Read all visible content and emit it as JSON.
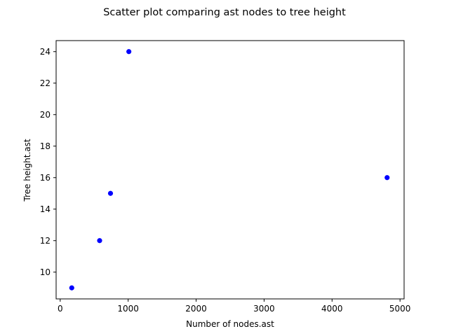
{
  "chart_data": {
    "type": "scatter",
    "title": "Scatter plot comparing ast nodes to tree height",
    "xlabel": "Number of nodes.ast",
    "ylabel": "Tree height.ast",
    "xlim": [
      -60,
      5060
    ],
    "ylim": [
      8.3,
      24.7
    ],
    "xticks": [
      0,
      1000,
      2000,
      3000,
      4000,
      5000
    ],
    "xtick_labels": [
      "0",
      "1000",
      "2000",
      "3000",
      "4000",
      "5000"
    ],
    "yticks": [
      10,
      12,
      14,
      16,
      18,
      20,
      22,
      24
    ],
    "ytick_labels": [
      "10",
      "12",
      "14",
      "16",
      "18",
      "20",
      "22",
      "24"
    ],
    "grid": false,
    "marker_color": "#0000ff",
    "points": [
      {
        "x": 170,
        "y": 9
      },
      {
        "x": 580,
        "y": 12
      },
      {
        "x": 740,
        "y": 15
      },
      {
        "x": 1010,
        "y": 24
      },
      {
        "x": 4810,
        "y": 16
      }
    ]
  }
}
